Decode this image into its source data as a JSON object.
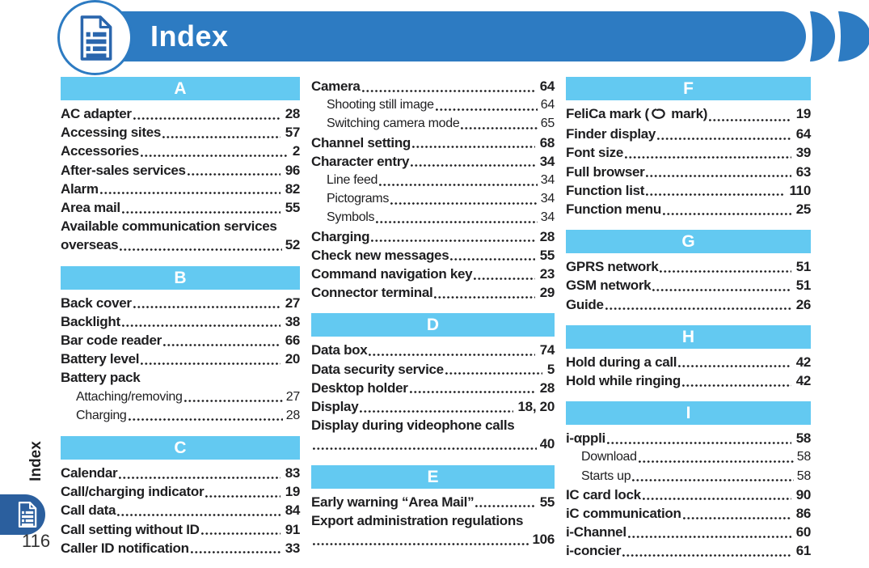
{
  "header": {
    "title": "Index"
  },
  "sidebar": {
    "vertical_label": "Index",
    "page_number": "116"
  },
  "icons": {
    "header_icon": "document-list-icon",
    "tab_icon": "document-list-icon",
    "inline_icon": "felica-mark-icon",
    "decoration": "header-arc-decoration"
  },
  "colors": {
    "header_blue": "#2d7bc2",
    "section_blue": "#63c9f1",
    "tab_blue": "#2b5f9e",
    "icon_blue": "#2a66ad",
    "text_color": "#1e1e20"
  },
  "index": {
    "columns": [
      {
        "blocks": [
          {
            "letter": "A",
            "entries": [
              {
                "label": "AC adapter",
                "page": "28"
              },
              {
                "label": "Accessing sites",
                "page": "57"
              },
              {
                "label": "Accessories",
                "page": "2"
              },
              {
                "label": "After-sales services",
                "page": "96"
              },
              {
                "label": "Alarm",
                "page": "82"
              },
              {
                "label": "Area mail",
                "page": "55"
              },
              {
                "label": "Available communication services",
                "wrap": "overseas",
                "page": "52"
              }
            ]
          },
          {
            "letter": "B",
            "entries": [
              {
                "label": "Back cover",
                "page": "27"
              },
              {
                "label": "Backlight",
                "page": "38"
              },
              {
                "label": "Bar code reader",
                "page": "66"
              },
              {
                "label": "Battery level",
                "page": "20"
              },
              {
                "label": "Battery pack"
              },
              {
                "label": "Attaching/removing",
                "page": "27",
                "sub": true
              },
              {
                "label": "Charging",
                "page": "28",
                "sub": true
              }
            ]
          },
          {
            "letter": "C",
            "entries": [
              {
                "label": "Calendar",
                "page": "83"
              },
              {
                "label": "Call/charging indicator",
                "page": "19"
              },
              {
                "label": "Call data",
                "page": "84"
              },
              {
                "label": "Call setting without ID",
                "page": "91"
              },
              {
                "label": "Caller ID notification",
                "page": "33"
              }
            ]
          }
        ]
      },
      {
        "blocks": [
          {
            "letter": null,
            "entries": [
              {
                "label": "Camera",
                "page": "64"
              },
              {
                "label": "Shooting still image",
                "page": "64",
                "sub": true
              },
              {
                "label": "Switching camera mode",
                "page": "65",
                "sub": true
              },
              {
                "label": "Channel setting",
                "page": "68"
              },
              {
                "label": "Character entry",
                "page": "34"
              },
              {
                "label": "Line feed",
                "page": "34",
                "sub": true
              },
              {
                "label": "Pictograms",
                "page": "34",
                "sub": true
              },
              {
                "label": "Symbols",
                "page": "34",
                "sub": true
              },
              {
                "label": "Charging",
                "page": "28"
              },
              {
                "label": "Check new messages",
                "page": "55"
              },
              {
                "label": "Command navigation key",
                "page": "23"
              },
              {
                "label": "Connector terminal",
                "page": "29"
              }
            ]
          },
          {
            "letter": "D",
            "entries": [
              {
                "label": "Data box",
                "page": "74"
              },
              {
                "label": "Data security service",
                "page": "5"
              },
              {
                "label": "Desktop holder",
                "page": "28"
              },
              {
                "label": "Display",
                "page": "18, 20"
              },
              {
                "label": "Display during videophone calls",
                "wrap": "",
                "page": "40"
              }
            ]
          },
          {
            "letter": "E",
            "entries": [
              {
                "label": "Early warning “Area Mail”",
                "page": "55"
              },
              {
                "label": "Export administration regulations",
                "wrap": "",
                "page": "106"
              }
            ]
          }
        ]
      },
      {
        "blocks": [
          {
            "letter": "F",
            "entries": [
              {
                "label_pre": "FeliCa mark (",
                "icon": "felica-mark-icon",
                "label_post": " mark)",
                "page": "19"
              },
              {
                "label": "Finder display",
                "page": "64"
              },
              {
                "label": "Font size",
                "page": "39"
              },
              {
                "label": "Full browser",
                "page": "63"
              },
              {
                "label": "Function list",
                "page": "110"
              },
              {
                "label": "Function menu",
                "page": "25"
              }
            ]
          },
          {
            "letter": "G",
            "entries": [
              {
                "label": "GPRS network",
                "page": "51"
              },
              {
                "label": "GSM network",
                "page": "51"
              },
              {
                "label": "Guide",
                "page": "26"
              }
            ]
          },
          {
            "letter": "H",
            "entries": [
              {
                "label": "Hold during a call",
                "page": "42"
              },
              {
                "label": "Hold while ringing",
                "page": "42"
              }
            ]
          },
          {
            "letter": "I",
            "entries": [
              {
                "label": "i-αppli",
                "page": "58"
              },
              {
                "label": "Download",
                "page": "58",
                "sub": true
              },
              {
                "label": "Starts up",
                "page": "58",
                "sub": true
              },
              {
                "label": "IC card lock",
                "page": "90"
              },
              {
                "label": "iC communication",
                "page": "86"
              },
              {
                "label": "i-Channel",
                "page": "60"
              },
              {
                "label": "i-concier",
                "page": "61"
              }
            ]
          }
        ]
      }
    ]
  }
}
